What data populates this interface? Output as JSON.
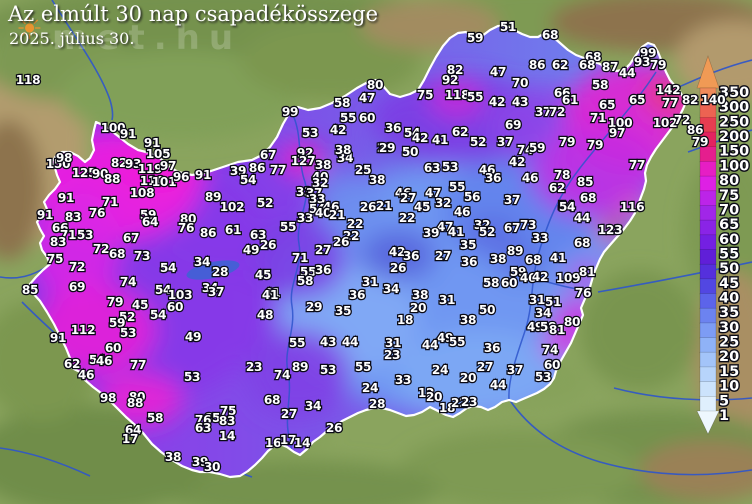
{
  "texts": {
    "title": "Az elmúlt 30 nap csapadékösszege",
    "date": "2025. július 30.",
    "watermark": "met.hu"
  },
  "legend": {
    "unit_values": [
      "350",
      "300",
      "250",
      "200",
      "150",
      "100",
      "80",
      "75",
      "70",
      "65",
      "60",
      "55",
      "50",
      "45",
      "40",
      "35",
      "30",
      "25",
      "20",
      "15",
      "10",
      "5",
      "1"
    ],
    "colors": [
      "#ef8a5a",
      "#ec6352",
      "#e73d51",
      "#e32260",
      "#e51e8e",
      "#e61ec4",
      "#de20e4",
      "#bc24e8",
      "#a126e8",
      "#8a24e6",
      "#7420e2",
      "#601fd8",
      "#5530dc",
      "#5247e2",
      "#5c64ea",
      "#6c83f0",
      "#7d9cf4",
      "#8fb2f7",
      "#a3c4f9",
      "#b7d4fb",
      "#cce3fc",
      "#dfeffd"
    ],
    "arrow_top_color": "#f09a55",
    "arrow_bottom_color": "#eef7fe"
  },
  "map": {
    "border_color": "#ffffff",
    "river_color": "#2e55cc",
    "stations": [
      [
        118,
        28,
        80
      ],
      [
        100,
        113,
        128
      ],
      [
        91,
        128,
        134
      ],
      [
        91,
        152,
        143
      ],
      [
        150,
        58,
        164
      ],
      [
        98,
        64,
        158
      ],
      [
        82,
        119,
        163
      ],
      [
        93,
        133,
        164
      ],
      [
        105,
        158,
        154
      ],
      [
        119,
        150,
        169
      ],
      [
        97,
        168,
        166
      ],
      [
        125,
        84,
        173
      ],
      [
        90,
        100,
        174
      ],
      [
        88,
        112,
        179
      ],
      [
        110,
        152,
        181
      ],
      [
        101,
        164,
        182
      ],
      [
        96,
        181,
        177
      ],
      [
        108,
        142,
        193
      ],
      [
        91,
        66,
        198
      ],
      [
        71,
        110,
        202
      ],
      [
        91,
        45,
        215
      ],
      [
        83,
        73,
        217
      ],
      [
        76,
        97,
        213
      ],
      [
        59,
        148,
        215
      ],
      [
        64,
        150,
        222
      ],
      [
        80,
        188,
        219
      ],
      [
        76,
        186,
        228
      ],
      [
        66,
        60,
        228
      ],
      [
        71,
        68,
        235
      ],
      [
        53,
        85,
        235
      ],
      [
        83,
        58,
        242
      ],
      [
        67,
        131,
        238
      ],
      [
        72,
        101,
        249
      ],
      [
        68,
        117,
        254
      ],
      [
        73,
        142,
        256
      ],
      [
        75,
        55,
        259
      ],
      [
        72,
        77,
        267
      ],
      [
        54,
        168,
        268
      ],
      [
        34,
        202,
        262
      ],
      [
        69,
        77,
        287
      ],
      [
        74,
        128,
        282
      ],
      [
        85,
        30,
        290
      ],
      [
        54,
        163,
        290
      ],
      [
        103,
        180,
        295
      ],
      [
        79,
        115,
        302
      ],
      [
        45,
        140,
        305
      ],
      [
        60,
        175,
        307
      ],
      [
        54,
        158,
        315
      ],
      [
        52,
        127,
        317
      ],
      [
        59,
        117,
        323
      ],
      [
        53,
        128,
        333
      ],
      [
        112,
        83,
        330
      ],
      [
        91,
        58,
        338
      ],
      [
        49,
        193,
        337
      ],
      [
        60,
        113,
        348
      ],
      [
        54,
        97,
        360
      ],
      [
        46,
        104,
        361
      ],
      [
        62,
        72,
        364
      ],
      [
        77,
        138,
        365
      ],
      [
        46,
        86,
        375
      ],
      [
        53,
        192,
        377
      ],
      [
        98,
        108,
        398
      ],
      [
        80,
        137,
        397
      ],
      [
        88,
        135,
        403
      ],
      [
        58,
        155,
        418
      ],
      [
        64,
        133,
        430
      ],
      [
        17,
        130,
        439
      ],
      [
        75,
        228,
        411
      ],
      [
        65,
        212,
        418
      ],
      [
        76,
        203,
        420
      ],
      [
        83,
        227,
        421
      ],
      [
        63,
        203,
        428
      ],
      [
        14,
        227,
        436
      ],
      [
        38,
        173,
        457
      ],
      [
        39,
        200,
        462
      ],
      [
        30,
        212,
        467
      ],
      [
        99,
        290,
        112
      ],
      [
        58,
        342,
        103
      ],
      [
        80,
        375,
        85
      ],
      [
        47,
        367,
        98
      ],
      [
        55,
        348,
        118
      ],
      [
        60,
        367,
        118
      ],
      [
        42,
        338,
        130
      ],
      [
        53,
        310,
        133
      ],
      [
        67,
        268,
        155
      ],
      [
        92,
        305,
        153
      ],
      [
        127,
        303,
        161
      ],
      [
        38,
        323,
        165
      ],
      [
        39,
        238,
        171
      ],
      [
        86,
        257,
        168
      ],
      [
        77,
        278,
        170
      ],
      [
        91,
        203,
        175
      ],
      [
        54,
        248,
        180
      ],
      [
        89,
        213,
        197
      ],
      [
        102,
        232,
        207
      ],
      [
        52,
        265,
        203
      ],
      [
        61,
        233,
        230
      ],
      [
        86,
        208,
        233
      ],
      [
        63,
        258,
        235
      ],
      [
        49,
        251,
        250
      ],
      [
        26,
        268,
        245
      ],
      [
        27,
        323,
        250
      ],
      [
        22,
        355,
        224
      ],
      [
        22,
        351,
        236
      ],
      [
        26,
        341,
        242
      ],
      [
        33,
        305,
        218
      ],
      [
        55,
        288,
        227
      ],
      [
        40,
        320,
        177
      ],
      [
        32,
        320,
        183
      ],
      [
        33,
        304,
        192
      ],
      [
        37,
        314,
        193
      ],
      [
        33,
        317,
        199
      ],
      [
        54,
        317,
        209
      ],
      [
        46,
        331,
        207
      ],
      [
        40,
        323,
        213
      ],
      [
        21,
        337,
        215
      ],
      [
        26,
        368,
        207
      ],
      [
        21,
        384,
        206
      ],
      [
        38,
        377,
        180
      ],
      [
        25,
        363,
        170
      ],
      [
        34,
        345,
        158
      ],
      [
        38,
        343,
        150
      ],
      [
        29,
        385,
        148
      ],
      [
        45,
        263,
        275
      ],
      [
        41,
        272,
        293
      ],
      [
        34,
        210,
        288
      ],
      [
        37,
        216,
        292
      ],
      [
        28,
        220,
        272
      ],
      [
        71,
        300,
        258
      ],
      [
        55,
        308,
        272
      ],
      [
        36,
        323,
        270
      ],
      [
        58,
        305,
        281
      ],
      [
        29,
        314,
        307
      ],
      [
        31,
        370,
        282
      ],
      [
        36,
        357,
        295
      ],
      [
        41,
        270,
        295
      ],
      [
        48,
        265,
        315
      ],
      [
        35,
        343,
        311
      ],
      [
        55,
        297,
        343
      ],
      [
        43,
        328,
        342
      ],
      [
        44,
        350,
        342
      ],
      [
        23,
        254,
        367
      ],
      [
        89,
        300,
        367
      ],
      [
        74,
        282,
        375
      ],
      [
        53,
        328,
        370
      ],
      [
        55,
        363,
        367
      ],
      [
        68,
        272,
        400
      ],
      [
        34,
        313,
        406
      ],
      [
        27,
        289,
        414
      ],
      [
        26,
        334,
        428
      ],
      [
        16,
        273,
        443
      ],
      [
        17,
        288,
        440
      ],
      [
        14,
        302,
        443
      ],
      [
        28,
        377,
        404
      ],
      [
        24,
        370,
        388
      ],
      [
        33,
        403,
        380
      ],
      [
        12,
        426,
        393
      ],
      [
        20,
        434,
        397
      ],
      [
        18,
        447,
        408
      ],
      [
        22,
        459,
        403
      ],
      [
        23,
        469,
        402
      ],
      [
        63,
        432,
        168
      ],
      [
        53,
        450,
        167
      ],
      [
        42,
        517,
        162
      ],
      [
        46,
        487,
        170
      ],
      [
        36,
        493,
        178
      ],
      [
        46,
        530,
        178
      ],
      [
        78,
        562,
        175
      ],
      [
        62,
        557,
        188
      ],
      [
        55,
        457,
        187
      ],
      [
        47,
        433,
        193
      ],
      [
        46,
        403,
        193
      ],
      [
        27,
        408,
        198
      ],
      [
        56,
        472,
        197
      ],
      [
        32,
        443,
        203
      ],
      [
        45,
        422,
        207
      ],
      [
        37,
        512,
        200
      ],
      [
        54,
        566,
        206
      ],
      [
        22,
        407,
        218
      ],
      [
        46,
        462,
        212
      ],
      [
        47,
        445,
        227
      ],
      [
        41,
        456,
        232
      ],
      [
        39,
        431,
        233
      ],
      [
        32,
        482,
        225
      ],
      [
        52,
        487,
        232
      ],
      [
        67,
        512,
        228
      ],
      [
        73,
        528,
        225
      ],
      [
        33,
        540,
        238
      ],
      [
        35,
        468,
        245
      ],
      [
        42,
        397,
        252
      ],
      [
        36,
        411,
        256
      ],
      [
        27,
        443,
        256
      ],
      [
        89,
        515,
        251
      ],
      [
        38,
        498,
        259
      ],
      [
        36,
        469,
        262
      ],
      [
        68,
        533,
        260
      ],
      [
        41,
        558,
        258
      ],
      [
        26,
        398,
        268
      ],
      [
        59,
        518,
        272
      ],
      [
        46,
        528,
        278
      ],
      [
        42,
        540,
        277
      ],
      [
        109,
        568,
        278
      ],
      [
        58,
        491,
        283
      ],
      [
        60,
        509,
        283
      ],
      [
        34,
        391,
        289
      ],
      [
        59,
        475,
        38
      ],
      [
        51,
        508,
        27
      ],
      [
        68,
        550,
        35
      ],
      [
        82,
        455,
        70
      ],
      [
        92,
        450,
        80
      ],
      [
        47,
        498,
        72
      ],
      [
        86,
        537,
        65
      ],
      [
        62,
        560,
        65
      ],
      [
        70,
        520,
        83
      ],
      [
        75,
        425,
        95
      ],
      [
        118,
        457,
        95
      ],
      [
        55,
        475,
        97
      ],
      [
        66,
        562,
        93
      ],
      [
        61,
        570,
        100
      ],
      [
        42,
        497,
        102
      ],
      [
        43,
        520,
        102
      ],
      [
        37,
        543,
        112
      ],
      [
        72,
        557,
        112
      ],
      [
        69,
        513,
        125
      ],
      [
        36,
        393,
        128
      ],
      [
        54,
        412,
        133
      ],
      [
        42,
        420,
        138
      ],
      [
        41,
        440,
        140
      ],
      [
        62,
        460,
        132
      ],
      [
        52,
        478,
        142
      ],
      [
        37,
        505,
        142
      ],
      [
        79,
        567,
        142
      ],
      [
        74,
        525,
        150
      ],
      [
        59,
        537,
        148
      ],
      [
        29,
        387,
        148
      ],
      [
        50,
        410,
        152
      ],
      [
        68,
        593,
        57
      ],
      [
        68,
        587,
        65
      ],
      [
        87,
        610,
        67
      ],
      [
        99,
        648,
        53
      ],
      [
        93,
        642,
        62
      ],
      [
        79,
        658,
        65
      ],
      [
        44,
        627,
        73
      ],
      [
        58,
        600,
        85
      ],
      [
        142,
        668,
        90
      ],
      [
        65,
        637,
        100
      ],
      [
        65,
        607,
        105
      ],
      [
        77,
        670,
        103
      ],
      [
        82,
        690,
        100
      ],
      [
        140,
        713,
        100
      ],
      [
        71,
        598,
        118
      ],
      [
        100,
        620,
        123
      ],
      [
        102,
        665,
        123
      ],
      [
        72,
        682,
        120
      ],
      [
        86,
        695,
        130
      ],
      [
        97,
        617,
        133
      ],
      [
        79,
        700,
        142
      ],
      [
        79,
        595,
        145
      ],
      [
        77,
        637,
        165
      ],
      [
        85,
        585,
        182
      ],
      [
        68,
        588,
        198
      ],
      [
        54,
        567,
        207
      ],
      [
        44,
        582,
        218
      ],
      [
        116,
        632,
        207
      ],
      [
        123,
        610,
        230
      ],
      [
        68,
        582,
        243
      ],
      [
        81,
        587,
        272
      ],
      [
        76,
        583,
        293
      ],
      [
        31,
        447,
        300
      ],
      [
        31,
        537,
        300
      ],
      [
        51,
        553,
        302
      ],
      [
        50,
        487,
        310
      ],
      [
        34,
        543,
        313
      ],
      [
        38,
        468,
        320
      ],
      [
        49,
        535,
        327
      ],
      [
        58,
        548,
        327
      ],
      [
        81,
        557,
        330
      ],
      [
        80,
        572,
        322
      ],
      [
        74,
        550,
        350
      ],
      [
        60,
        552,
        365
      ],
      [
        53,
        543,
        377
      ],
      [
        36,
        492,
        348
      ],
      [
        49,
        445,
        338
      ],
      [
        55,
        457,
        342
      ],
      [
        27,
        485,
        367
      ],
      [
        37,
        515,
        370
      ],
      [
        24,
        440,
        370
      ],
      [
        20,
        468,
        378
      ],
      [
        44,
        498,
        385
      ],
      [
        31,
        393,
        343
      ],
      [
        23,
        392,
        355
      ],
      [
        44,
        430,
        345
      ],
      [
        18,
        405,
        320
      ],
      [
        20,
        418,
        308
      ],
      [
        38,
        420,
        295
      ]
    ]
  }
}
